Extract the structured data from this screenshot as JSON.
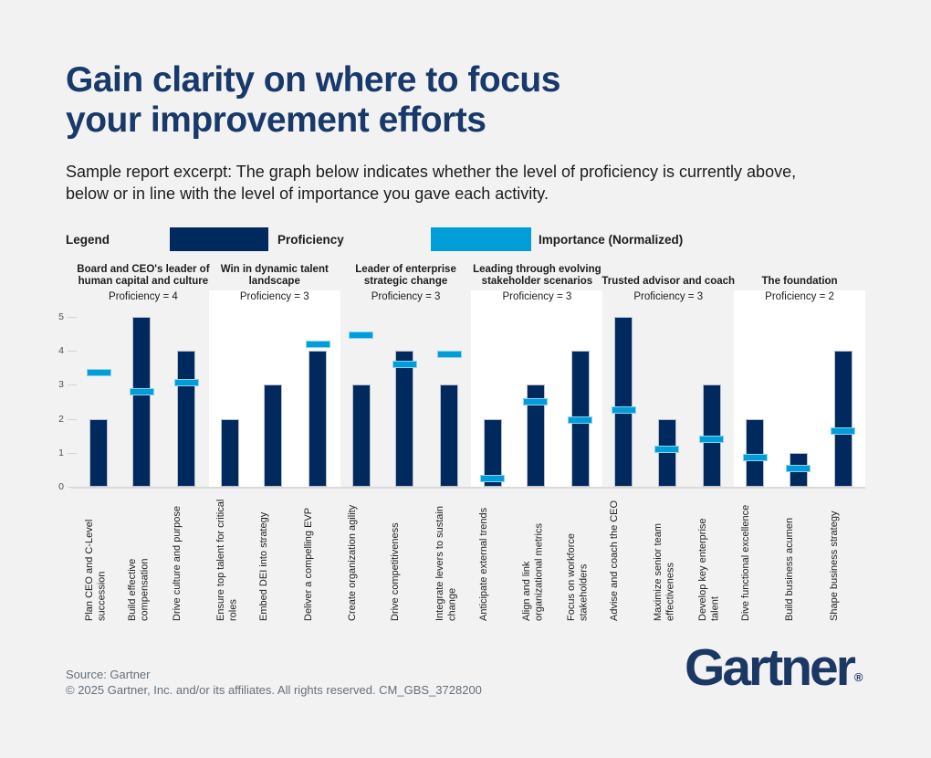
{
  "page": {
    "title_line1": "Gain clarity on where to focus",
    "title_line2": "your improvement efforts",
    "subtitle": "Sample report excerpt: The graph below indicates whether the level of proficiency is currently above, below or in line with the level of importance you gave each activity.",
    "footer": {
      "source": "Source: Gartner",
      "copyright": "© 2025 Gartner, Inc. and/or its affiliates. All rights reserved. CM_GBS_3728200"
    },
    "logo_text": "Gartner",
    "logo_reg": "®"
  },
  "legend": {
    "label": "Legend",
    "items": [
      {
        "name": "Proficiency",
        "color": "#002a5e"
      },
      {
        "name": "Importance (Normalized)",
        "color": "#009dd9"
      }
    ]
  },
  "chart_data": {
    "type": "bar",
    "title": "",
    "xlabel": "",
    "ylabel": "",
    "ylim": [
      0,
      5
    ],
    "yticks": [
      0,
      1,
      2,
      3,
      4,
      5
    ],
    "grid": false,
    "legend_position": "top",
    "series_legend": [
      "Proficiency",
      "Importance (Normalized)"
    ],
    "importance_marker": "horizontal-dash",
    "colors": {
      "proficiency": "#002a5e",
      "importance": "#009dd9",
      "panel_white": "#ffffff"
    },
    "groups": [
      {
        "title": "Board and CEO's leader of human capital and culture",
        "proficiency_label": "Proficiency = 4",
        "panel": "gray",
        "bars": [
          {
            "label": "Plan CEO and C-Level succession",
            "proficiency": 2,
            "importance": 3.35
          },
          {
            "label": "Build effective compensation",
            "proficiency": 5,
            "importance": 2.8
          },
          {
            "label": "Drive culture and purpose",
            "proficiency": 4,
            "importance": 3.05
          }
        ]
      },
      {
        "title": "Win in dynamic talent landscape",
        "proficiency_label": "Proficiency = 3",
        "panel": "white",
        "bars": [
          {
            "label": "Ensure top talent for critical roles",
            "proficiency": 2,
            "importance": null
          },
          {
            "label": "Embed DEI into strategy",
            "proficiency": 3,
            "importance": null
          },
          {
            "label": "Deliver a compelling EVP",
            "proficiency": 4,
            "importance": 4.2
          }
        ]
      },
      {
        "title": "Leader of enterprise strategic change",
        "proficiency_label": "Proficiency = 3",
        "panel": "gray",
        "bars": [
          {
            "label": "Create organization agility",
            "proficiency": 3,
            "importance": 4.45
          },
          {
            "label": "Drive competitiveness",
            "proficiency": 4,
            "importance": 3.6
          },
          {
            "label": "Integrate levers to sustain change",
            "proficiency": 3,
            "importance": 3.9
          }
        ]
      },
      {
        "title": "Leading through evolving stakeholder scenarios",
        "proficiency_label": "Proficiency = 3",
        "panel": "white",
        "bars": [
          {
            "label": "Anticipate external trends",
            "proficiency": 2,
            "importance": 0.25
          },
          {
            "label": "Align and link organizational metrics",
            "proficiency": 3,
            "importance": 2.5
          },
          {
            "label": "Focus on workforce stakeholders",
            "proficiency": 4,
            "importance": 1.95
          }
        ]
      },
      {
        "title": "Trusted advisor and coach",
        "proficiency_label": "Proficiency = 3",
        "panel": "gray",
        "bars": [
          {
            "label": "Advise and coach the CEO",
            "proficiency": 5,
            "importance": 2.25
          },
          {
            "label": "Maximize senior team effectiveness",
            "proficiency": 2,
            "importance": 1.1
          },
          {
            "label": "Develop key enterprise talent",
            "proficiency": 3,
            "importance": 1.4
          }
        ]
      },
      {
        "title": "The foundation",
        "proficiency_label": "Proficiency = 2",
        "panel": "white",
        "bars": [
          {
            "label": "Dive functional excellence",
            "proficiency": 2,
            "importance": 0.85
          },
          {
            "label": "Build business acumen",
            "proficiency": 1,
            "importance": 0.55
          },
          {
            "label": "Shape business strategy",
            "proficiency": 4,
            "importance": 1.65
          }
        ]
      }
    ]
  }
}
